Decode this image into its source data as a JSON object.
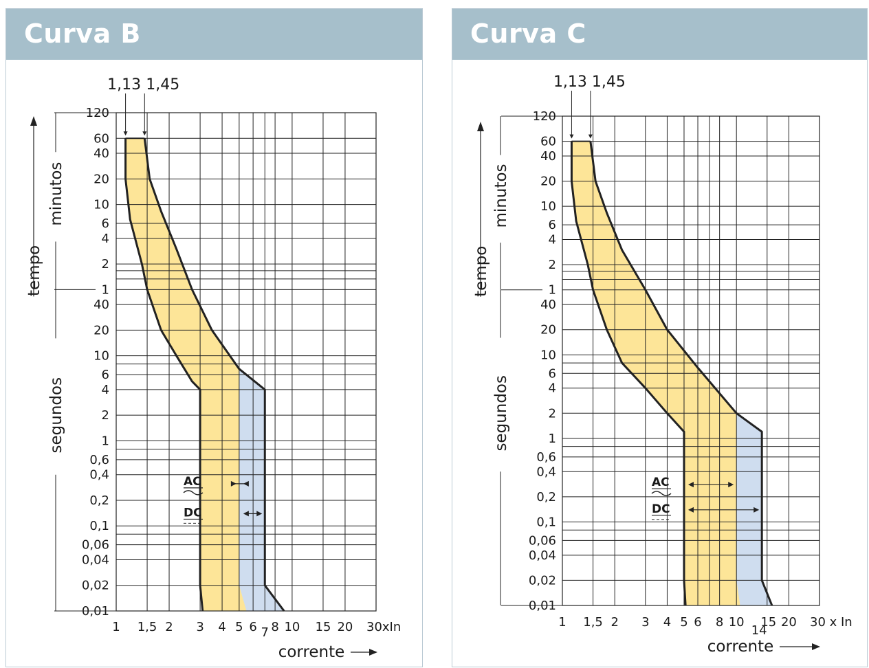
{
  "charts": [
    {
      "title": "Curva B",
      "marker_labels": [
        "1,13",
        "1,45"
      ],
      "x_tick_labels": [
        "1",
        "1,5",
        "2",
        "3",
        "4",
        "5",
        "6",
        "7",
        "8",
        "10",
        "15",
        "20",
        "30xIn"
      ],
      "y_tick_labels_minutes": [
        "120",
        "60",
        "40",
        "20",
        "10",
        "6",
        "4",
        "2",
        "1"
      ],
      "y_tick_labels_seconds": [
        "40",
        "20",
        "10",
        "6",
        "4",
        "2",
        "1",
        "0,6",
        "0,4",
        "0,2",
        "0,1",
        "0,06",
        "0,04",
        "0,02",
        "0,01"
      ],
      "labels": {
        "tempo": "tempo",
        "minutos": "minutos",
        "segundos": "segundos",
        "corrente": "corrente",
        "ac": "AC",
        "dc": "DC"
      }
    },
    {
      "title": "Curva C",
      "marker_labels": [
        "1,13",
        "1,45"
      ],
      "x_tick_labels": [
        "1",
        "1,5",
        "2",
        "3",
        "4",
        "5",
        "6",
        "8",
        "10",
        "14",
        "15",
        "20",
        "30 x In"
      ],
      "y_tick_labels_minutes": [
        "120",
        "60",
        "40",
        "20",
        "10",
        "6",
        "4",
        "2",
        "1"
      ],
      "y_tick_labels_seconds": [
        "40",
        "20",
        "10",
        "6",
        "4",
        "2",
        "1",
        "0,6",
        "0,4",
        "0,2",
        "0,1",
        "0,06",
        "0,04",
        "0,02",
        "0,01"
      ],
      "labels": {
        "tempo": "tempo",
        "minutos": "minutos",
        "segundos": "segundos",
        "corrente": "corrente",
        "ac": "AC",
        "dc": "DC"
      }
    }
  ],
  "chart_data": [
    {
      "type": "area",
      "title": "Curva B",
      "xlabel": "corrente",
      "ylabel": "tempo",
      "x_unit": "x In",
      "x_scale": "log",
      "xlim": [
        1,
        30
      ],
      "y_scale": "log",
      "y_unit": "s",
      "ylim": [
        0.01,
        7200
      ],
      "grid": true,
      "markers_x": [
        1.13,
        1.45
      ],
      "series": [
        {
          "name": "AC",
          "color": "#fde598",
          "inverse_time_to": [
            5,
            5
          ]
        },
        {
          "name": "DC",
          "color": "#cfddef",
          "inverse_time_to": [
            5,
            7
          ]
        }
      ],
      "outline_lower": [
        [
          1.13,
          3600
        ],
        [
          1.13,
          1200
        ],
        [
          1.2,
          400
        ],
        [
          1.4,
          120
        ],
        [
          1.5,
          60
        ],
        [
          1.8,
          20
        ],
        [
          2.2,
          10
        ],
        [
          2.7,
          5
        ],
        [
          3,
          4
        ],
        [
          3,
          0.02
        ],
        [
          3.1,
          0.01
        ]
      ],
      "outline_upper": [
        [
          1.45,
          3600
        ],
        [
          1.55,
          1200
        ],
        [
          1.8,
          500
        ],
        [
          2.2,
          180
        ],
        [
          2.7,
          60
        ],
        [
          3.5,
          20
        ],
        [
          5,
          7
        ],
        [
          7,
          4
        ],
        [
          7,
          0.02
        ],
        [
          9,
          0.01
        ]
      ],
      "ac_right_edge": [
        [
          5,
          7
        ],
        [
          5,
          0.02
        ],
        [
          5.5,
          0.01
        ]
      ]
    },
    {
      "type": "area",
      "title": "Curva C",
      "xlabel": "corrente",
      "ylabel": "tempo",
      "x_unit": "x In",
      "x_scale": "log",
      "xlim": [
        1,
        30
      ],
      "y_scale": "log",
      "y_unit": "s",
      "ylim": [
        0.01,
        7200
      ],
      "grid": true,
      "markers_x": [
        1.13,
        1.45
      ],
      "series": [
        {
          "name": "AC",
          "color": "#fde598",
          "inverse_time_to": [
            5,
            10
          ]
        },
        {
          "name": "DC",
          "color": "#cfddef",
          "inverse_time_to": [
            5,
            14
          ]
        }
      ],
      "outline_lower": [
        [
          1.13,
          3600
        ],
        [
          1.13,
          1200
        ],
        [
          1.2,
          400
        ],
        [
          1.4,
          120
        ],
        [
          1.5,
          60
        ],
        [
          1.8,
          20
        ],
        [
          2.2,
          8
        ],
        [
          3,
          4
        ],
        [
          4,
          2
        ],
        [
          5,
          1.2
        ],
        [
          5,
          0.02
        ],
        [
          5.1,
          0.01
        ]
      ],
      "outline_upper": [
        [
          1.45,
          3600
        ],
        [
          1.55,
          1200
        ],
        [
          1.8,
          500
        ],
        [
          2.2,
          180
        ],
        [
          3,
          60
        ],
        [
          4,
          20
        ],
        [
          6,
          7
        ],
        [
          10,
          2
        ],
        [
          14,
          1.2
        ],
        [
          14,
          0.02
        ],
        [
          16,
          0.01
        ]
      ],
      "ac_right_edge": [
        [
          10,
          2
        ],
        [
          10,
          0.02
        ],
        [
          10.5,
          0.01
        ]
      ]
    }
  ]
}
